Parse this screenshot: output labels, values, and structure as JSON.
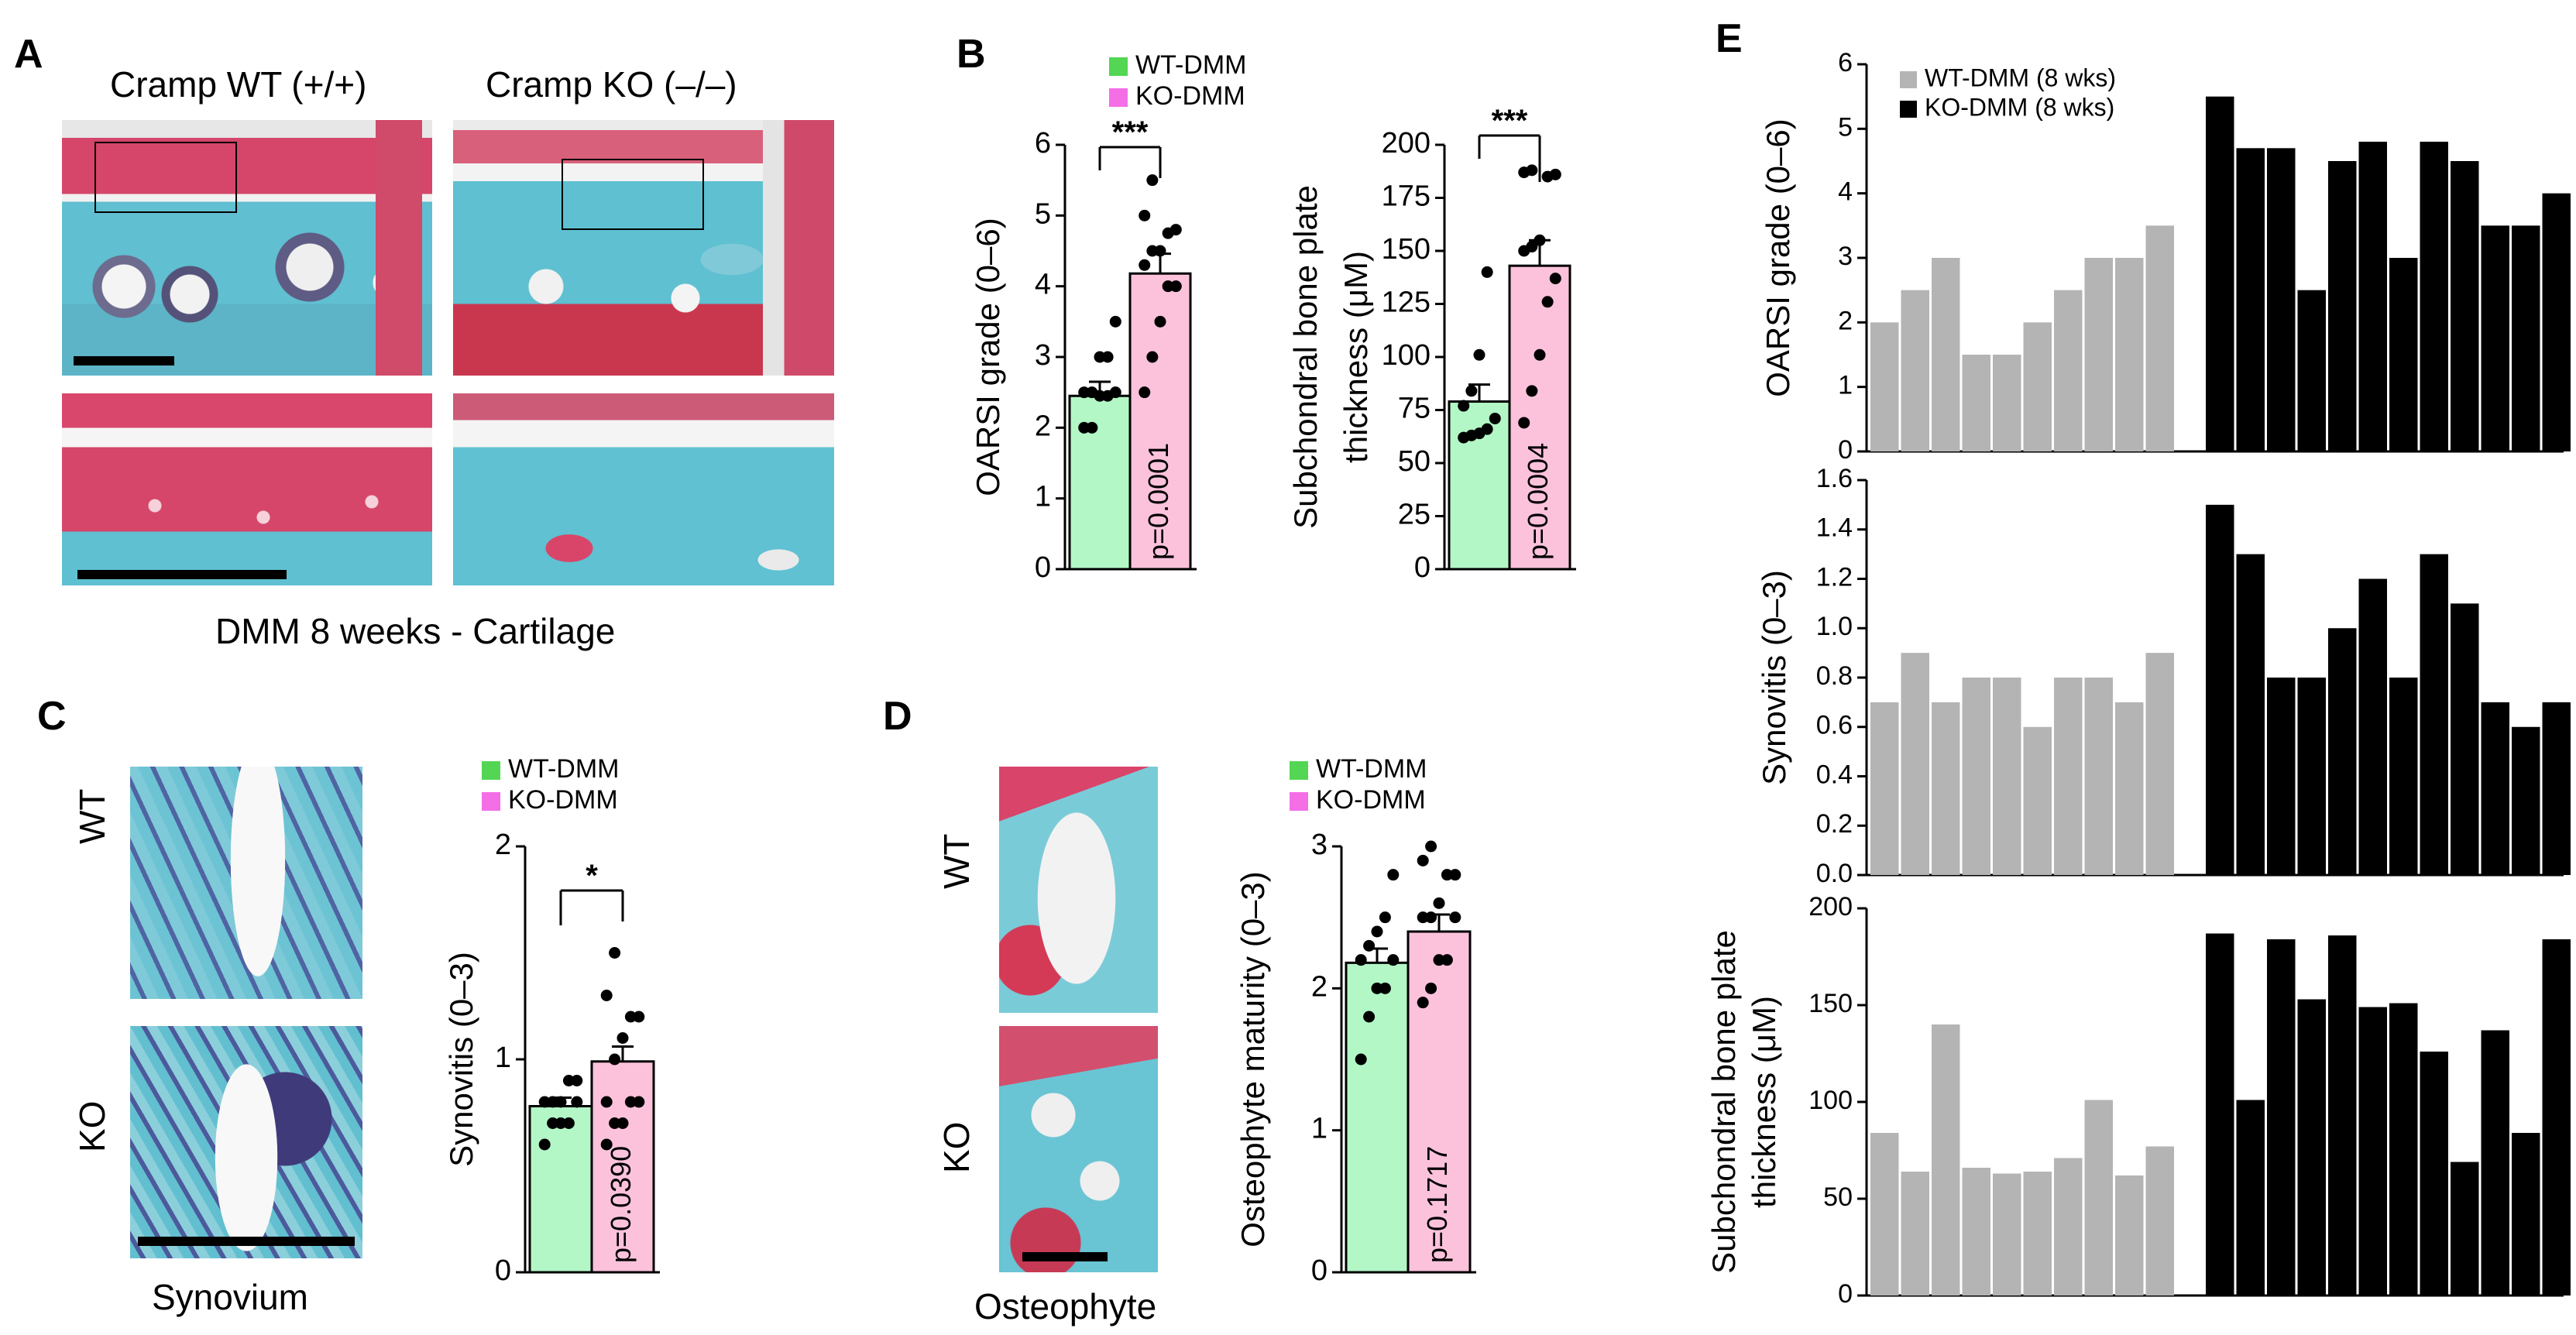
{
  "panel_labels": {
    "a": "A",
    "b": "B",
    "c": "C",
    "d": "D",
    "e": "E"
  },
  "panel_a": {
    "col_wt": "Cramp WT (+/+)",
    "col_ko": "Cramp KO (–/–)",
    "caption": "DMM 8 weeks - Cartilage"
  },
  "panel_c": {
    "row_wt": "WT",
    "row_ko": "KO",
    "caption": "Synovium"
  },
  "panel_d": {
    "row_wt": "WT",
    "row_ko": "KO",
    "caption": "Osteophyte"
  },
  "colors": {
    "wt_fill": "#b3f7c7",
    "ko_fill": "#fcc2dc",
    "wt_legend": "#53d653",
    "ko_legend": "#f46ee6",
    "gray": "#b4b4b4",
    "black": "#000000"
  },
  "chart_data": [
    {
      "id": "b_oarsi",
      "type": "bar",
      "legend": [
        "WT-DMM",
        "KO-DMM"
      ],
      "categories": [
        "WT-DMM",
        "KO-DMM"
      ],
      "values": [
        2.45,
        4.18
      ],
      "sem": [
        0.2,
        0.28
      ],
      "ylabel": "OARSI grade (0–6)",
      "ylim": [
        0,
        6
      ],
      "yticks": [
        "0",
        "1",
        "2",
        "3",
        "4",
        "5",
        "6"
      ],
      "sig": "***",
      "pvalue": "p=0.0001",
      "points": [
        [
          2.0,
          2.0,
          2.45,
          2.45,
          2.5,
          2.5,
          2.5,
          3.0,
          3.0,
          3.5
        ],
        [
          2.5,
          3.0,
          3.5,
          4.0,
          4.0,
          4.3,
          4.5,
          4.5,
          4.75,
          4.8,
          5.0,
          5.5
        ]
      ]
    },
    {
      "id": "b_subchondral",
      "type": "bar",
      "categories": [
        "WT-DMM",
        "KO-DMM"
      ],
      "values": [
        79,
        143
      ],
      "sem": [
        8,
        12
      ],
      "ylabel": "Subchondral bone plate thickness (μM)",
      "ylim": [
        0,
        200
      ],
      "yticks": [
        "0",
        "25",
        "50",
        "75",
        "100",
        "125",
        "150",
        "175",
        "200"
      ],
      "sig": "***",
      "pvalue": "p=0.0004",
      "points": [
        [
          62,
          63,
          64,
          66,
          71,
          77,
          84,
          101,
          140
        ],
        [
          69,
          84,
          101,
          126,
          137,
          150,
          152,
          155,
          185,
          186,
          187,
          188
        ]
      ]
    },
    {
      "id": "c_synovitis",
      "type": "bar",
      "legend": [
        "WT-DMM",
        "KO-DMM"
      ],
      "categories": [
        "WT-DMM",
        "KO-DMM"
      ],
      "values": [
        0.78,
        0.99
      ],
      "sem": [
        0.04,
        0.07
      ],
      "ylabel": "Synovitis (0–3)",
      "ylim": [
        0,
        2
      ],
      "yticks": [
        "0",
        "1",
        "2"
      ],
      "sig": "*",
      "pvalue": "p=0.0390",
      "points": [
        [
          0.6,
          0.7,
          0.7,
          0.7,
          0.8,
          0.8,
          0.8,
          0.8,
          0.9,
          0.9
        ],
        [
          0.6,
          0.7,
          0.7,
          0.8,
          0.8,
          0.8,
          1.0,
          1.1,
          1.2,
          1.2,
          1.3,
          1.5
        ]
      ]
    },
    {
      "id": "d_osteophyte",
      "type": "bar",
      "legend": [
        "WT-DMM",
        "KO-DMM"
      ],
      "categories": [
        "WT-DMM",
        "KO-DMM"
      ],
      "values": [
        2.18,
        2.4
      ],
      "sem": [
        0.1,
        0.12
      ],
      "ylabel": "Osteophyte maturity (0–3)",
      "ylim": [
        0,
        3
      ],
      "yticks": [
        "0",
        "1",
        "2",
        "3"
      ],
      "pvalue": "p=0.1717",
      "points": [
        [
          1.5,
          1.8,
          2.0,
          2.0,
          2.2,
          2.2,
          2.3,
          2.4,
          2.5,
          2.8
        ],
        [
          1.9,
          2.0,
          2.2,
          2.2,
          2.5,
          2.5,
          2.5,
          2.6,
          2.8,
          2.8,
          2.9,
          3.0
        ]
      ]
    },
    {
      "id": "e_oarsi",
      "type": "bar",
      "legend": [
        "WT-DMM (8 wks)",
        "KO-DMM (8 wks)"
      ],
      "ylabel": "OARSI grade (0–6)",
      "ylim": [
        0,
        6
      ],
      "yticks": [
        "0",
        "1",
        "2",
        "3",
        "4",
        "5",
        "6"
      ],
      "series": [
        {
          "name": "WT-DMM (8 wks)",
          "values": [
            2.0,
            2.5,
            3.0,
            1.5,
            1.5,
            2.0,
            2.5,
            3.0,
            3.0,
            3.5
          ]
        },
        {
          "name": "KO-DMM (8 wks)",
          "values": [
            5.5,
            4.7,
            4.7,
            2.5,
            4.5,
            4.8,
            3.0,
            4.8,
            4.5,
            3.5,
            3.5,
            4.0
          ]
        }
      ]
    },
    {
      "id": "e_synovitis",
      "type": "bar",
      "ylabel": "Synovitis (0–3)",
      "ylim": [
        0,
        1.6
      ],
      "yticks": [
        "0.0",
        "0.2",
        "0.4",
        "0.6",
        "0.8",
        "1.0",
        "1.2",
        "1.4",
        "1.6"
      ],
      "series": [
        {
          "name": "WT-DMM (8 wks)",
          "values": [
            0.7,
            0.9,
            0.7,
            0.8,
            0.8,
            0.6,
            0.8,
            0.8,
            0.7,
            0.9
          ]
        },
        {
          "name": "KO-DMM (8 wks)",
          "values": [
            1.5,
            1.3,
            0.8,
            0.8,
            1.0,
            1.2,
            0.8,
            1.3,
            1.1,
            0.7,
            0.6,
            0.7
          ]
        }
      ]
    },
    {
      "id": "e_subchondral",
      "type": "bar",
      "ylabel": "Subchondral bone plate thickness (μM)",
      "ylim": [
        0,
        200
      ],
      "yticks": [
        "0",
        "50",
        "100",
        "150",
        "200"
      ],
      "series": [
        {
          "name": "WT-DMM (8 wks)",
          "values": [
            84,
            64,
            140,
            66,
            63,
            64,
            71,
            101,
            62,
            77
          ]
        },
        {
          "name": "KO-DMM (8 wks)",
          "values": [
            187,
            101,
            184,
            153,
            186,
            149,
            151,
            126,
            69,
            137,
            84,
            184
          ]
        }
      ]
    }
  ]
}
